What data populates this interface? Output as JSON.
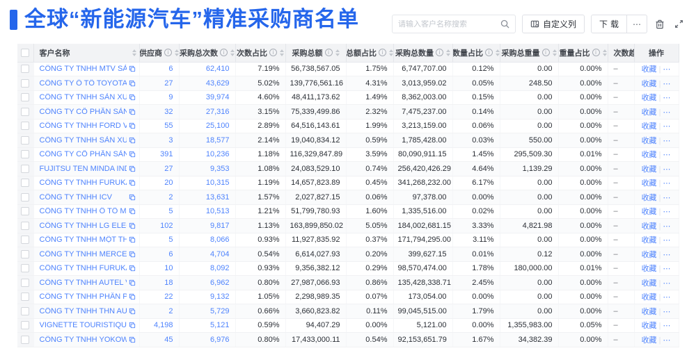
{
  "page": {
    "title": "全球“新能源汽车”精准采购商名单"
  },
  "colors": {
    "accent": "#2566eb",
    "link": "#4e83fd",
    "header_bg": "#f2f3f5"
  },
  "toolbar": {
    "search_placeholder": "请输入客户名称搜索",
    "customize_columns_label": "自定义列",
    "download_label": "下载",
    "more_label": "⋯"
  },
  "table": {
    "columns": [
      {
        "key": "checkbox",
        "label": "",
        "type": "checkbox"
      },
      {
        "key": "name",
        "label": "客户名称",
        "info": false,
        "sort": true,
        "align": "left"
      },
      {
        "key": "supplier",
        "label": "供应商",
        "info": true,
        "sort": true
      },
      {
        "key": "total_count",
        "label": "采购总次数",
        "info": true,
        "sort": true
      },
      {
        "key": "count_pct",
        "label": "次数占比",
        "info": true,
        "sort": true
      },
      {
        "key": "total_amount",
        "label": "采购总额",
        "info": true,
        "sort": true
      },
      {
        "key": "amount_pct",
        "label": "总额占比",
        "info": true,
        "sort": true
      },
      {
        "key": "total_qty",
        "label": "采购总数量",
        "info": true,
        "sort": true
      },
      {
        "key": "qty_pct",
        "label": "数量占比",
        "info": true,
        "sort": true
      },
      {
        "key": "total_weight",
        "label": "采购总重量",
        "info": true,
        "sort": true
      },
      {
        "key": "weight_pct",
        "label": "重量占比",
        "info": true,
        "sort": true
      },
      {
        "key": "trend",
        "label": "次数趋势",
        "info": false,
        "sort": false
      },
      {
        "key": "actions",
        "label": "操作",
        "info": false,
        "sort": false
      }
    ],
    "actions": {
      "favorite": "收藏",
      "divider": "|",
      "more": "⋯"
    },
    "rows": [
      {
        "name": "CÔNG TY TNHH MTV SẢN XUẤ...",
        "supplier": "6",
        "total_count": "62,410",
        "count_pct": "7.19%",
        "total_amount": "56,738,567.05",
        "amount_pct": "1.75%",
        "total_qty": "6,747,707.00",
        "qty_pct": "0.12%",
        "total_weight": "0.00",
        "weight_pct": "0.00%",
        "trend": "–"
      },
      {
        "name": "CÔNG TY Ô TÔ TOYOTA VIỆT ...",
        "supplier": "27",
        "total_count": "43,629",
        "count_pct": "5.02%",
        "total_amount": "139,776,561.16",
        "amount_pct": "4.31%",
        "total_qty": "3,013,959.02",
        "qty_pct": "0.05%",
        "total_weight": "248.50",
        "weight_pct": "0.00%",
        "trend": "–"
      },
      {
        "name": "CÔNG TY TNHH SẢN XUẤT VÀ ...",
        "supplier": "9",
        "total_count": "39,974",
        "count_pct": "4.60%",
        "total_amount": "48,411,173.62",
        "amount_pct": "1.49%",
        "total_qty": "8,362,003.00",
        "qty_pct": "0.15%",
        "total_weight": "0.00",
        "weight_pct": "0.00%",
        "trend": "–"
      },
      {
        "name": "CÔNG TY CỔ PHẦN SẢN XUẤT...",
        "supplier": "32",
        "total_count": "27,316",
        "count_pct": "3.15%",
        "total_amount": "75,339,499.86",
        "amount_pct": "2.32%",
        "total_qty": "7,475,237.00",
        "qty_pct": "0.14%",
        "total_weight": "0.00",
        "weight_pct": "0.00%",
        "trend": "–"
      },
      {
        "name": "CÔNG TY TNHH FORD VIỆT NAM",
        "supplier": "55",
        "total_count": "25,100",
        "count_pct": "2.89%",
        "total_amount": "64,516,143.61",
        "amount_pct": "1.99%",
        "total_qty": "3,213,159.00",
        "qty_pct": "0.06%",
        "total_weight": "0.00",
        "weight_pct": "0.00%",
        "trend": "–"
      },
      {
        "name": "CÔNG TY TNHH SẢN XUẤT VÀ ...",
        "supplier": "3",
        "total_count": "18,577",
        "count_pct": "2.14%",
        "total_amount": "19,040,834.12",
        "amount_pct": "0.59%",
        "total_qty": "1,785,428.00",
        "qty_pct": "0.03%",
        "total_weight": "550.00",
        "weight_pct": "0.00%",
        "trend": "–"
      },
      {
        "name": "CÔNG TY CỔ PHẦN SẢN XUẤT...",
        "supplier": "391",
        "total_count": "10,236",
        "count_pct": "1.18%",
        "total_amount": "116,329,847.89",
        "amount_pct": "3.59%",
        "total_qty": "80,090,911.15",
        "qty_pct": "1.45%",
        "total_weight": "295,509.30",
        "weight_pct": "0.01%",
        "trend": "–"
      },
      {
        "name": "FUJITSU TEN MINDA INDIA PVT...",
        "supplier": "27",
        "total_count": "9,353",
        "count_pct": "1.08%",
        "total_amount": "24,083,529.10",
        "amount_pct": "0.74%",
        "total_qty": "256,420,426.29",
        "qty_pct": "4.64%",
        "total_weight": "1,139.29",
        "weight_pct": "0.00%",
        "trend": "–"
      },
      {
        "name": "CÔNG TY TNHH FURUKAWA A...",
        "supplier": "20",
        "total_count": "10,315",
        "count_pct": "1.19%",
        "total_amount": "14,657,823.89",
        "amount_pct": "0.45%",
        "total_qty": "341,268,232.00",
        "qty_pct": "6.17%",
        "total_weight": "0.00",
        "weight_pct": "0.00%",
        "trend": "–"
      },
      {
        "name": "CÔNG TY TNHH ICV",
        "supplier": "2",
        "total_count": "13,631",
        "count_pct": "1.57%",
        "total_amount": "2,027,827.15",
        "amount_pct": "0.06%",
        "total_qty": "97,378.00",
        "qty_pct": "0.00%",
        "total_weight": "0.00",
        "weight_pct": "0.00%",
        "trend": "–"
      },
      {
        "name": "CÔNG TY TNHH Ô TÔ MITSUBI...",
        "supplier": "5",
        "total_count": "10,513",
        "count_pct": "1.21%",
        "total_amount": "51,799,780.93",
        "amount_pct": "1.60%",
        "total_qty": "1,335,516.00",
        "qty_pct": "0.02%",
        "total_weight": "0.00",
        "weight_pct": "0.00%",
        "trend": "–"
      },
      {
        "name": "CÔNG TY TNHH LG ELECTRON...",
        "supplier": "102",
        "total_count": "9,817",
        "count_pct": "1.13%",
        "total_amount": "163,899,850.02",
        "amount_pct": "5.05%",
        "total_qty": "184,002,681.15",
        "qty_pct": "3.33%",
        "total_weight": "4,821.98",
        "weight_pct": "0.00%",
        "trend": "–"
      },
      {
        "name": "CÔNG TY TNHH MỘT THÀNH V...",
        "supplier": "5",
        "total_count": "8,066",
        "count_pct": "0.93%",
        "total_amount": "11,927,835.92",
        "amount_pct": "0.37%",
        "total_qty": "171,794,295.00",
        "qty_pct": "3.11%",
        "total_weight": "0.00",
        "weight_pct": "0.00%",
        "trend": "–"
      },
      {
        "name": "CÔNG TY TNHH MERCEDES-B...",
        "supplier": "6",
        "total_count": "4,704",
        "count_pct": "0.54%",
        "total_amount": "6,614,027.93",
        "amount_pct": "0.20%",
        "total_qty": "399,627.15",
        "qty_pct": "0.01%",
        "total_weight": "0.12",
        "weight_pct": "0.00%",
        "trend": "–"
      },
      {
        "name": "CÔNG TY TNHH FURUKAWA A...",
        "supplier": "10",
        "total_count": "8,092",
        "count_pct": "0.93%",
        "total_amount": "9,356,382.12",
        "amount_pct": "0.29%",
        "total_qty": "98,570,474.00",
        "qty_pct": "1.78%",
        "total_weight": "180,000.00",
        "weight_pct": "0.01%",
        "trend": "–"
      },
      {
        "name": "CÔNG TY TNHH AUTEL VIỆT N...",
        "supplier": "18",
        "total_count": "6,962",
        "count_pct": "0.80%",
        "total_amount": "27,987,066.93",
        "amount_pct": "0.86%",
        "total_qty": "135,428,338.71",
        "qty_pct": "2.45%",
        "total_weight": "0.00",
        "weight_pct": "0.00%",
        "trend": "–"
      },
      {
        "name": "CÔNG TY TNHH PHÂN PHỐI T...",
        "supplier": "22",
        "total_count": "9,132",
        "count_pct": "1.05%",
        "total_amount": "2,298,989.35",
        "amount_pct": "0.07%",
        "total_qty": "173,054.00",
        "qty_pct": "0.00%",
        "total_weight": "0.00",
        "weight_pct": "0.00%",
        "trend": "–"
      },
      {
        "name": "CÔNG TY TNHH THN AUTOPAR...",
        "supplier": "2",
        "total_count": "5,729",
        "count_pct": "0.66%",
        "total_amount": "3,660,823.82",
        "amount_pct": "0.11%",
        "total_qty": "99,045,515.00",
        "qty_pct": "1.79%",
        "total_weight": "0.00",
        "weight_pct": "0.00%",
        "trend": "–"
      },
      {
        "name": "VIGNETTE TOURISTIQUE G UNI...",
        "supplier": "4,198",
        "total_count": "5,121",
        "count_pct": "0.59%",
        "total_amount": "94,407.29",
        "amount_pct": "0.00%",
        "total_qty": "5,121.00",
        "qty_pct": "0.00%",
        "total_weight": "1,355,983.00",
        "weight_pct": "0.05%",
        "trend": "–"
      },
      {
        "name": "CÔNG TY TNHH YOKOWO VIỆT...",
        "supplier": "45",
        "total_count": "6,976",
        "count_pct": "0.80%",
        "total_amount": "17,433,000.11",
        "amount_pct": "0.54%",
        "total_qty": "92,153,651.79",
        "qty_pct": "1.67%",
        "total_weight": "34,382.39",
        "weight_pct": "0.00%",
        "trend": "–"
      }
    ]
  }
}
